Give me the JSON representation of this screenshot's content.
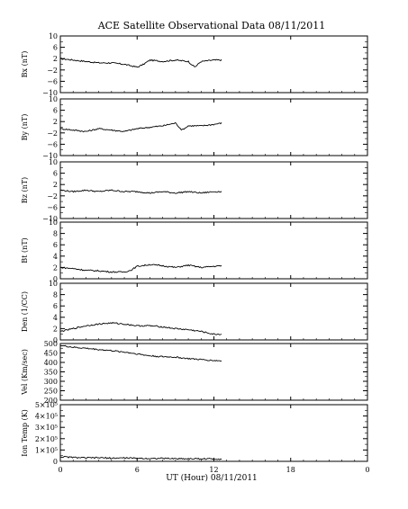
{
  "chart_data": {
    "type": "line",
    "title": "ACE Satellite Observational Data   08/11/2011",
    "xlabel": "UT (Hour)  08/11/2011",
    "x_ticks": [
      "0",
      "6",
      "12",
      "18",
      "0"
    ],
    "xlim": [
      0,
      24
    ],
    "data_end_hour": 12.6,
    "panels": [
      {
        "ylabel": "Bx (nT)",
        "ylim": [
          -10,
          10
        ],
        "y_ticks": [
          "10",
          "6",
          "2",
          "−2",
          "−6",
          "−10"
        ],
        "y_tick_values": [
          10,
          6,
          2,
          -2,
          -6,
          -10
        ],
        "series": [
          {
            "x": [
              0,
              1,
              2,
              3,
              4,
              5,
              6,
              6.5,
              7,
              8,
              9,
              10,
              10.5,
              11,
              12,
              12.6
            ],
            "y": [
              2,
              1.5,
              1,
              0.5,
              0.5,
              0,
              -1,
              0,
              1.5,
              1,
              1.5,
              1,
              -1,
              1,
              1.5,
              1.5
            ]
          }
        ]
      },
      {
        "ylabel": "By (nT)",
        "ylim": [
          -10,
          10
        ],
        "y_ticks": [
          "10",
          "6",
          "2",
          "−2",
          "−6",
          "−10"
        ],
        "y_tick_values": [
          10,
          6,
          2,
          -2,
          -6,
          -10
        ],
        "series": [
          {
            "x": [
              0,
              1,
              2,
              3,
              4,
              5,
              6,
              7,
              8,
              9,
              9.5,
              10,
              11,
              12,
              12.6
            ],
            "y": [
              -0.5,
              -1,
              -1.5,
              -0.5,
              -1,
              -1.5,
              -0.5,
              0,
              0.5,
              1.5,
              -1,
              0.5,
              0.5,
              1,
              1.5
            ]
          }
        ]
      },
      {
        "ylabel": "Bz (nT)",
        "ylim": [
          -10,
          10
        ],
        "y_ticks": [
          "10",
          "6",
          "2",
          "−2",
          "−6",
          "−10"
        ],
        "y_tick_values": [
          10,
          6,
          2,
          -2,
          -6,
          -10
        ],
        "series": [
          {
            "x": [
              0,
              1,
              2,
              3,
              4,
              5,
              6,
              7,
              8,
              9,
              10,
              11,
              12,
              12.6
            ],
            "y": [
              0,
              -0.5,
              0,
              -0.5,
              0,
              -0.5,
              -0.5,
              -1,
              -0.5,
              -1,
              -0.5,
              -1,
              -0.5,
              -0.5
            ]
          }
        ]
      },
      {
        "ylabel": "Bt (nT)",
        "ylim": [
          0,
          10
        ],
        "y_ticks": [
          "10",
          "8",
          "6",
          "4",
          "2",
          "0"
        ],
        "y_tick_values": [
          10,
          8,
          6,
          4,
          2,
          0
        ],
        "series": [
          {
            "x": [
              0,
              1,
              2,
              3,
              4,
              5,
              5.5,
              6,
              7,
              8,
              9,
              10,
              11,
              12,
              12.6
            ],
            "y": [
              2,
              1.8,
              1.5,
              1.4,
              1.2,
              1.2,
              1.5,
              2.2,
              2.5,
              2.3,
              2.0,
              2.4,
              2.0,
              2.2,
              2.3
            ]
          }
        ]
      },
      {
        "ylabel": "Den (1/CC)",
        "ylim": [
          0,
          10
        ],
        "y_ticks": [
          "10",
          "8",
          "6",
          "4",
          "2",
          "0"
        ],
        "y_tick_values": [
          10,
          8,
          6,
          4,
          2,
          0
        ],
        "series": [
          {
            "x": [
              0,
              1,
              2,
              3,
              4,
              5,
              6,
              7,
              8,
              9,
              10,
              11,
              12,
              12.6
            ],
            "y": [
              1.5,
              2.0,
              2.5,
              2.8,
              3.0,
              2.8,
              2.5,
              2.5,
              2.3,
              2.0,
              1.8,
              1.5,
              1.0,
              1.0
            ]
          }
        ]
      },
      {
        "ylabel": "Vel (Km/sec)",
        "ylim": [
          200,
          500
        ],
        "y_ticks": [
          "500",
          "450",
          "400",
          "350",
          "300",
          "250",
          "200"
        ],
        "y_tick_values": [
          500,
          450,
          400,
          350,
          300,
          250,
          200
        ],
        "series": [
          {
            "x": [
              0,
              1,
              2,
              3,
              4,
              5,
              6,
              7,
              8,
              9,
              10,
              11,
              12,
              12.6
            ],
            "y": [
              490,
              480,
              475,
              468,
              462,
              455,
              445,
              435,
              430,
              428,
              420,
              415,
              410,
              408
            ]
          }
        ]
      },
      {
        "ylabel": "Ion Temp (K)",
        "ylim": [
          0,
          500000
        ],
        "y_ticks": [
          "5×10⁵",
          "4×10⁵",
          "3×10⁵",
          "2×10⁵",
          "1×10⁵",
          "0"
        ],
        "y_tick_values": [
          500000,
          400000,
          300000,
          200000,
          100000,
          0
        ],
        "series": [
          {
            "x": [
              0,
              1,
              2,
              3,
              4,
              5,
              6,
              7,
              8,
              9,
              10,
              11,
              12,
              12.6
            ],
            "y": [
              40000,
              35000,
              30000,
              32000,
              28000,
              30000,
              27000,
              25000,
              26000,
              24000,
              23000,
              22000,
              22000,
              20000
            ]
          }
        ]
      }
    ]
  }
}
